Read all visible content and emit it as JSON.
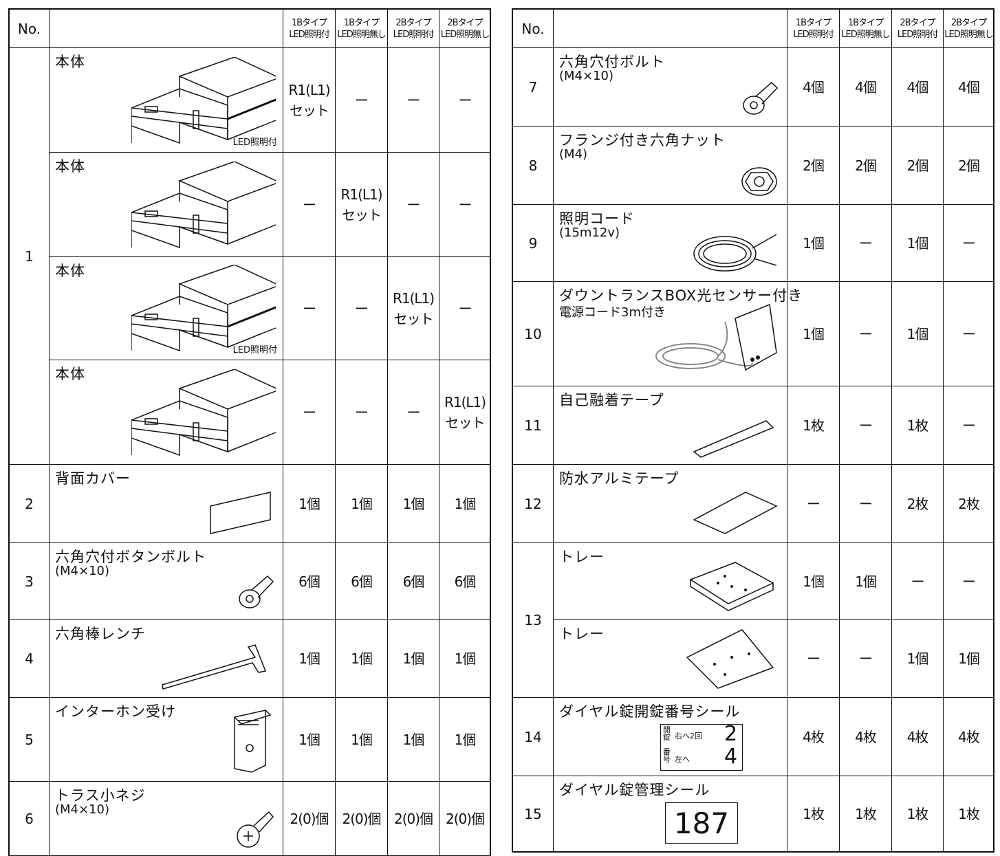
{
  "left_table": {
    "headers": {
      "no": "No.",
      "columns": [
        {
          "type": "1Bタイプ",
          "option": "LED照明付"
        },
        {
          "type": "1Bタイプ",
          "option": "LED照明無し"
        },
        {
          "type": "2Bタイプ",
          "option": "LED照明付"
        },
        {
          "type": "2Bタイプ",
          "option": "LED照明無し"
        }
      ]
    },
    "rows": [
      {
        "no": "1",
        "items": [
          {
            "name": "本体",
            "note": "LED照明付",
            "quantities": [
              "R1(L1)\nセット",
              "ー",
              "ー",
              "ー"
            ]
          },
          {
            "name": "本体",
            "quantities": [
              "ー",
              "R1(L1)\nセット",
              "ー",
              "ー"
            ]
          },
          {
            "name": "本体",
            "note": "LED照明付",
            "quantities": [
              "ー",
              "ー",
              "R1(L1)\nセット",
              "ー"
            ]
          },
          {
            "name": "本体",
            "quantities": [
              "ー",
              "ー",
              "ー",
              "R1(L1)\nセット"
            ]
          }
        ]
      },
      {
        "no": "2",
        "items": [
          {
            "name": "背面カバー",
            "quantities": [
              "1個",
              "1個",
              "1個",
              "1個"
            ]
          }
        ]
      },
      {
        "no": "3",
        "items": [
          {
            "name": "六角穴付ボタンボルト",
            "spec": "(M4×10)",
            "quantities": [
              "6個",
              "6個",
              "6個",
              "6個"
            ]
          }
        ]
      },
      {
        "no": "4",
        "items": [
          {
            "name": "六角棒レンチ",
            "quantities": [
              "1個",
              "1個",
              "1個",
              "1個"
            ]
          }
        ]
      },
      {
        "no": "5",
        "items": [
          {
            "name": "インターホン受け",
            "quantities": [
              "1個",
              "1個",
              "1個",
              "1個"
            ]
          }
        ]
      },
      {
        "no": "6",
        "items": [
          {
            "name": "トラス小ネジ",
            "spec": "(M4×10)",
            "quantities": [
              "2(0)個",
              "2(0)個",
              "2(0)個",
              "2(0)個"
            ]
          }
        ]
      }
    ]
  },
  "right_table": {
    "headers": {
      "no": "No.",
      "columns": [
        {
          "type": "1Bタイプ",
          "option": "LED照明付"
        },
        {
          "type": "1Bタイプ",
          "option": "LED照明無し"
        },
        {
          "type": "2Bタイプ",
          "option": "LED照明付"
        },
        {
          "type": "2Bタイプ",
          "option": "LED照明無し"
        }
      ]
    },
    "rows": [
      {
        "no": "7",
        "items": [
          {
            "name": "六角穴付ボルト",
            "spec": "(M4×10)",
            "quantities": [
              "4個",
              "4個",
              "4個",
              "4個"
            ]
          }
        ]
      },
      {
        "no": "8",
        "items": [
          {
            "name": "フランジ付き六角ナット",
            "spec": "(M4)",
            "quantities": [
              "2個",
              "2個",
              "2個",
              "2個"
            ]
          }
        ]
      },
      {
        "no": "9",
        "items": [
          {
            "name": "照明コード",
            "spec": "(15m12v)",
            "quantities": [
              "1個",
              "ー",
              "1個",
              "ー"
            ]
          }
        ]
      },
      {
        "no": "10",
        "items": [
          {
            "name": "ダウントランスBOX光センサー付き",
            "spec": "電源コード3m付き",
            "quantities": [
              "1個",
              "ー",
              "1個",
              "ー"
            ]
          }
        ]
      },
      {
        "no": "11",
        "items": [
          {
            "name": "自己融着テープ",
            "quantities": [
              "1枚",
              "ー",
              "1枚",
              "ー"
            ]
          }
        ]
      },
      {
        "no": "12",
        "items": [
          {
            "name": "防水アルミテープ",
            "quantities": [
              "ー",
              "ー",
              "2枚",
              "2枚"
            ]
          }
        ]
      },
      {
        "no": "13",
        "items": [
          {
            "name": "トレー",
            "quantities": [
              "1個",
              "1個",
              "ー",
              "ー"
            ]
          },
          {
            "name": "トレー",
            "quantities": [
              "ー",
              "ー",
              "1個",
              "1個"
            ]
          }
        ]
      },
      {
        "no": "14",
        "items": [
          {
            "name": "ダイヤル錠開錠番号シール",
            "sticker": {
              "label1": "開錠",
              "text1": "右へ2回",
              "num1": "2",
              "label2": "番号",
              "text2": "左へ",
              "num2": "4"
            },
            "quantities": [
              "4枚",
              "4枚",
              "4枚",
              "4枚"
            ]
          }
        ]
      },
      {
        "no": "15",
        "items": [
          {
            "name": "ダイヤル錠管理シール",
            "sticker_number": "187",
            "quantities": [
              "1枚",
              "1枚",
              "1枚",
              "1枚"
            ]
          }
        ]
      }
    ]
  }
}
